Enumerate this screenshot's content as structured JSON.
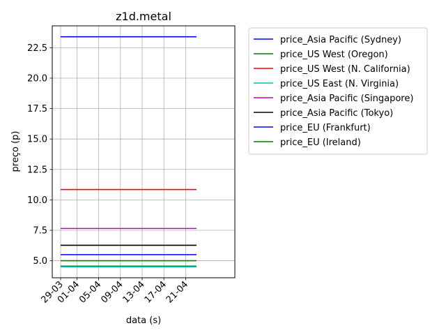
{
  "chart_data": {
    "type": "line",
    "title": "z1d.metal",
    "xlabel": "data (s)",
    "ylabel": "preço (p)",
    "x_ticks": [
      "29-03",
      "01-04",
      "05-04",
      "09-04",
      "13-04",
      "17-04",
      "21-04"
    ],
    "x_range": [
      "29-03",
      "23-04"
    ],
    "x": [
      "29-03",
      "23-04"
    ],
    "ylim": [
      3.6,
      24.3
    ],
    "y_ticks": [
      "5.0",
      "7.5",
      "10.0",
      "12.5",
      "15.0",
      "17.5",
      "20.0",
      "22.5"
    ],
    "grid": true,
    "legend_placement": "outside-right",
    "series": [
      {
        "name": "price_Asia Pacific (Sydney)",
        "color": "#0000ff",
        "values": [
          23.4,
          23.4
        ]
      },
      {
        "name": "price_US West (Oregon)",
        "color": "#008000",
        "values": [
          4.56,
          4.56
        ]
      },
      {
        "name": "price_US West (N. California)",
        "color": "#ff0000",
        "values": [
          10.85,
          10.85
        ]
      },
      {
        "name": "price_US East (N. Virginia)",
        "color": "#00bfbf",
        "values": [
          4.5,
          4.5
        ]
      },
      {
        "name": "price_Asia Pacific (Singapore)",
        "color": "#bf00bf",
        "values": [
          7.65,
          7.65
        ]
      },
      {
        "name": "price_Asia Pacific (Tokyo)",
        "color": "#000000",
        "values": [
          6.27,
          6.27
        ]
      },
      {
        "name": "price_EU (Frankfurt)",
        "color": "#0000ff",
        "values": [
          5.5,
          5.5
        ]
      },
      {
        "name": "price_EU (Ireland)",
        "color": "#008000",
        "values": [
          5.0,
          5.0
        ]
      }
    ]
  }
}
